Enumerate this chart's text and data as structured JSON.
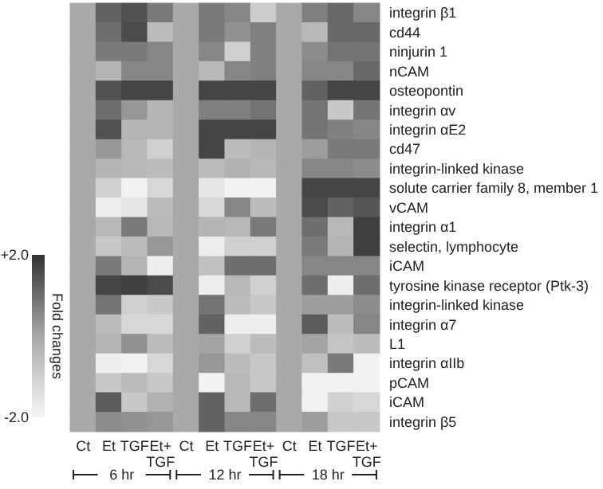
{
  "chart_data": {
    "type": "heatmap",
    "clabel": "Fold changes",
    "categories": [
      "Ct",
      "Et",
      "TGF",
      "Et+\nTGF",
      "Ct",
      "Et",
      "TGF",
      "Et+\nTGF",
      "Ct",
      "Et",
      "TGF",
      "Et+\nTGF"
    ],
    "y_categories": [
      "integrin β1",
      "cd44",
      "ninjurin 1",
      "nCAM",
      "osteopontin",
      "integrin αv",
      "integrin αE2",
      "cd47",
      "integrin-linked kinase",
      "solute carrier family 8, member 1",
      "vCAM",
      "integrin α1",
      "selectin, lymphocyte",
      "iCAM",
      "tyrosine kinase receptor (Ptk-3)",
      "integrin-linked kinase",
      "integrin α7",
      "L1",
      "integrin αIIb",
      "pCAM",
      "iCAM",
      "integrin β5"
    ],
    "cells": [
      [
        0,
        1.2,
        1.5,
        0.8,
        0,
        0.8,
        0.6,
        -0.9,
        0,
        0.7,
        1.1,
        0.6
      ],
      [
        0,
        1.0,
        1.6,
        -0.5,
        0,
        0.8,
        0.4,
        0.7,
        0,
        -0.4,
        1.1,
        1.1
      ],
      [
        0,
        0.8,
        0.8,
        0.6,
        0,
        0.6,
        -1.0,
        0.7,
        0,
        0.5,
        0.9,
        0.9
      ],
      [
        0,
        -0.3,
        0.6,
        0.6,
        0,
        -0.4,
        0.6,
        0.7,
        0,
        0.6,
        0.6,
        1.1
      ],
      [
        0,
        1.5,
        1.7,
        1.7,
        0,
        1.7,
        1.7,
        1.7,
        0,
        1.2,
        1.7,
        1.7
      ],
      [
        0,
        1.0,
        0.3,
        -0.3,
        0,
        0.7,
        0.7,
        0.9,
        0,
        0.9,
        -0.8,
        0.9
      ],
      [
        0,
        1.5,
        -0.3,
        -0.3,
        0,
        1.7,
        1.7,
        1.7,
        0,
        0.9,
        0.7,
        0.6
      ],
      [
        0,
        0.3,
        -0.4,
        -1.0,
        0,
        1.7,
        -0.5,
        -0.3,
        0,
        0.2,
        0.8,
        0.8
      ],
      [
        0,
        -0.3,
        -0.4,
        -0.5,
        0,
        -0.5,
        -0.2,
        -0.4,
        0,
        0.6,
        0.6,
        0.5
      ],
      [
        0,
        -1.0,
        -1.9,
        -1.2,
        0,
        -1.6,
        -1.9,
        -1.9,
        0,
        1.7,
        1.7,
        1.7
      ],
      [
        0,
        -1.8,
        -1.6,
        -0.5,
        0,
        -1.2,
        0.6,
        -0.5,
        0,
        1.6,
        1.2,
        1.4
      ],
      [
        0,
        -0.4,
        0.8,
        -0.4,
        0,
        -0.3,
        -0.4,
        0.8,
        0,
        1.0,
        -0.4,
        1.8
      ],
      [
        0,
        -0.8,
        -0.5,
        0.3,
        0,
        -1.8,
        -1.0,
        -1.0,
        0,
        0.8,
        -0.3,
        1.8
      ],
      [
        0,
        0.8,
        -0.3,
        -1.8,
        0,
        -0.6,
        1.0,
        1.0,
        0,
        0.6,
        0.6,
        0.6
      ],
      [
        0,
        1.7,
        1.8,
        1.6,
        0,
        -1.8,
        -0.4,
        -1.0,
        0,
        1.0,
        -1.8,
        1.0
      ],
      [
        0,
        0.9,
        -1.0,
        -0.8,
        0,
        0.9,
        -0.5,
        -0.8,
        0,
        0.2,
        0.2,
        0.5
      ],
      [
        0,
        -0.5,
        -1.2,
        -1.2,
        0,
        1.2,
        -1.8,
        -1.8,
        0,
        1.3,
        -0.5,
        0.6
      ],
      [
        0,
        -0.3,
        0.4,
        -0.5,
        0,
        0.1,
        -1.0,
        -0.5,
        0,
        0.1,
        -0.7,
        -0.5
      ],
      [
        0,
        -1.8,
        -1.9,
        -1.2,
        0,
        0.3,
        -0.5,
        -0.8,
        0,
        -0.6,
        0.8,
        -1.9
      ],
      [
        0,
        -0.8,
        -0.5,
        -0.8,
        0,
        -1.9,
        -0.4,
        -0.8,
        0,
        -1.9,
        -1.9,
        -1.9
      ],
      [
        0,
        1.3,
        -0.8,
        -0.2,
        0,
        1.2,
        -0.4,
        1.0,
        0,
        -1.9,
        -1.0,
        -1.2
      ],
      [
        0,
        0.5,
        0.4,
        0.3,
        0,
        1.2,
        0.6,
        0.6,
        0,
        0.2,
        -0.8,
        -0.8
      ]
    ],
    "clim": [
      -2,
      2
    ],
    "cticks": [
      {
        "value": 2,
        "label": "+2.0"
      },
      {
        "value": -2,
        "label": "-2.0"
      }
    ],
    "annotations": [
      "6 hr",
      "12 hr",
      "18 hr"
    ]
  }
}
